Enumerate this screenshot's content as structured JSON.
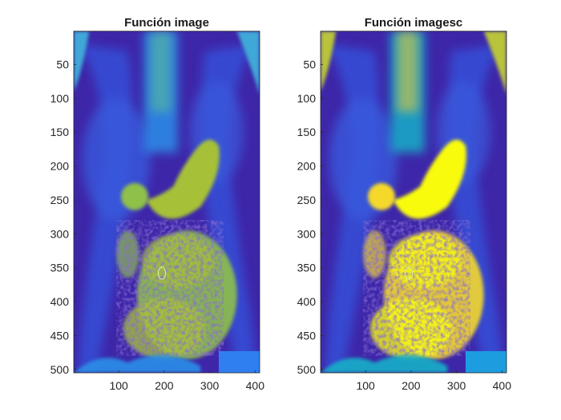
{
  "figure": {
    "background": "#ffffff"
  },
  "colormap": {
    "name": "parula",
    "low": "#3e26a8",
    "mid_low": "#2f79f2",
    "mid": "#1fb7c9",
    "mid_high": "#a6c137",
    "high": "#f9fb0e"
  },
  "axes": [
    {
      "title": "Función image",
      "x_ticks": [
        "100",
        "200",
        "300",
        "400"
      ],
      "y_ticks": [
        "50",
        "100",
        "150",
        "200",
        "250",
        "300",
        "350",
        "400",
        "450",
        "500"
      ],
      "xlim": [
        1,
        410
      ],
      "ylim": [
        1,
        505
      ],
      "scaling": "direct"
    },
    {
      "title": "Función imagesc",
      "x_ticks": [
        "100",
        "200",
        "300",
        "400"
      ],
      "y_ticks": [
        "50",
        "100",
        "150",
        "200",
        "250",
        "300",
        "350",
        "400",
        "450",
        "500"
      ],
      "xlim": [
        1,
        410
      ],
      "ylim": [
        1,
        505
      ],
      "scaling": "scaled"
    }
  ]
}
